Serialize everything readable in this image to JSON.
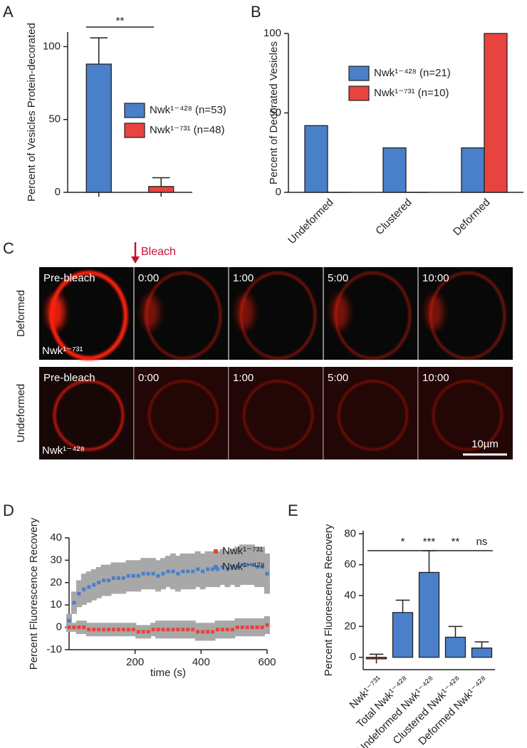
{
  "microscopy": {
    "panel": "C",
    "bleach": "Bleach",
    "rows": [
      {
        "label": "Deformed",
        "protein": "Nwk¹⁻⁷³¹",
        "frames": [
          "Pre-bleach",
          "0:00",
          "1:00",
          "5:00",
          "10:00"
        ]
      },
      {
        "label": "Undeformed",
        "protein": "Nwk¹⁻⁴²⁸",
        "frames": [
          "Pre-bleach",
          "0:00",
          "1:00",
          "5:00",
          "10:00"
        ]
      }
    ],
    "scale_bar": "10µm"
  },
  "chart_data": [
    {
      "type": "bar",
      "panel": "A",
      "ylabel": "Percent of Vesicles Protein-decorated",
      "categories": [
        null,
        null
      ],
      "series": [
        {
          "name": "Nwk¹⁻⁴²⁸ (n=53)",
          "color": "#4a7fc9",
          "values": [
            88,
            null
          ],
          "errors": [
            18,
            null
          ]
        },
        {
          "name": "Nwk¹⁻⁷³¹ (n=48)",
          "color": "#e8433f",
          "values": [
            null,
            4
          ],
          "errors": [
            null,
            6
          ]
        }
      ],
      "ylim": [
        0,
        110
      ],
      "yticks": [
        0,
        50,
        100
      ],
      "annotation": "**"
    },
    {
      "type": "bar",
      "panel": "B",
      "ylabel": "Percent of Decorated Vesicles",
      "categories": [
        "Undeformed",
        "Clustered",
        "Deformed"
      ],
      "series": [
        {
          "name": "Nwk¹⁻⁴²⁸ (n=21)",
          "color": "#4a7fc9",
          "values": [
            42,
            28,
            28
          ]
        },
        {
          "name": "Nwk¹⁻⁷³¹ (n=10)",
          "color": "#e8433f",
          "values": [
            0,
            0,
            100
          ]
        }
      ],
      "ylim": [
        0,
        100
      ],
      "yticks": [
        0,
        50,
        100
      ]
    },
    {
      "type": "scatter",
      "panel": "D",
      "xlabel": "time (s)",
      "ylabel": "Percent Fluorescence Recovery",
      "x": [
        0,
        15,
        30,
        45,
        60,
        75,
        90,
        105,
        120,
        135,
        150,
        165,
        180,
        195,
        210,
        225,
        240,
        255,
        270,
        285,
        300,
        315,
        330,
        345,
        360,
        375,
        390,
        405,
        420,
        435,
        450,
        465,
        480,
        495,
        510,
        525,
        540,
        555,
        570,
        585,
        600
      ],
      "series": [
        {
          "name": "Nwk¹⁻⁷³¹",
          "color": "#e8433f",
          "values": [
            0,
            0,
            0,
            0,
            -1,
            -1,
            -1,
            -1,
            -1,
            -1,
            -1,
            -1,
            -1,
            -1,
            -2,
            -2,
            -2,
            -1,
            -1,
            -1,
            -1,
            -1,
            -1,
            -1,
            -1,
            -1,
            -2,
            -2,
            -2,
            -2,
            -1,
            -1,
            -1,
            -1,
            0,
            0,
            0,
            0,
            0,
            0,
            1
          ],
          "errors": [
            2,
            2,
            3,
            3,
            3,
            3,
            3,
            3,
            3,
            3,
            3,
            3,
            3,
            3,
            3,
            3,
            3,
            3,
            4,
            4,
            4,
            4,
            4,
            4,
            4,
            4,
            4,
            4,
            4,
            4,
            4,
            4,
            4,
            4,
            4,
            4,
            4,
            4,
            4,
            4,
            4
          ]
        },
        {
          "name": "Nwk¹⁻⁴²⁸",
          "color": "#4a7fc9",
          "values": [
            3,
            11,
            15,
            17,
            18,
            19,
            20,
            21,
            21,
            22,
            22,
            22,
            23,
            23,
            23,
            24,
            24,
            24,
            23,
            24,
            25,
            25,
            24,
            25,
            25,
            25,
            26,
            25,
            26,
            26,
            26,
            27,
            26,
            27,
            27,
            28,
            28,
            28,
            27,
            27,
            24
          ],
          "errors": [
            3,
            5,
            6,
            7,
            7,
            7,
            7,
            7,
            7,
            7,
            7,
            7,
            7,
            7,
            7,
            7,
            7,
            7,
            7,
            7,
            7,
            8,
            8,
            8,
            8,
            8,
            8,
            8,
            8,
            8,
            8,
            8,
            8,
            8,
            9,
            9,
            9,
            9,
            9,
            9,
            9
          ]
        }
      ],
      "xlim": [
        0,
        600
      ],
      "xticks": [
        200,
        400,
        600
      ],
      "ylim": [
        -10,
        40
      ],
      "yticks": [
        -10,
        0,
        10,
        20,
        30,
        40
      ]
    },
    {
      "type": "bar",
      "panel": "E",
      "ylabel": "Percent Fluorescence Recovery",
      "categories": [
        "Nwk¹⁻⁷³¹",
        "Total Nwk¹⁻⁴²⁸",
        "Undeformed Nwk¹⁻⁴²⁸",
        "Clustered Nwk¹⁻⁴²⁸",
        "Deformed Nwk¹⁻⁴²⁸"
      ],
      "values": [
        -1,
        29,
        55,
        13,
        6
      ],
      "errors": [
        3,
        8,
        14,
        7,
        4
      ],
      "colors": [
        "#e8433f",
        "#4a7fc9",
        "#4a7fc9",
        "#4a7fc9",
        "#4a7fc9"
      ],
      "significance": [
        null,
        "*",
        "***",
        "**",
        "ns"
      ],
      "ylim": [
        -8,
        82
      ],
      "yticks": [
        0,
        20,
        40,
        60,
        80
      ]
    }
  ]
}
